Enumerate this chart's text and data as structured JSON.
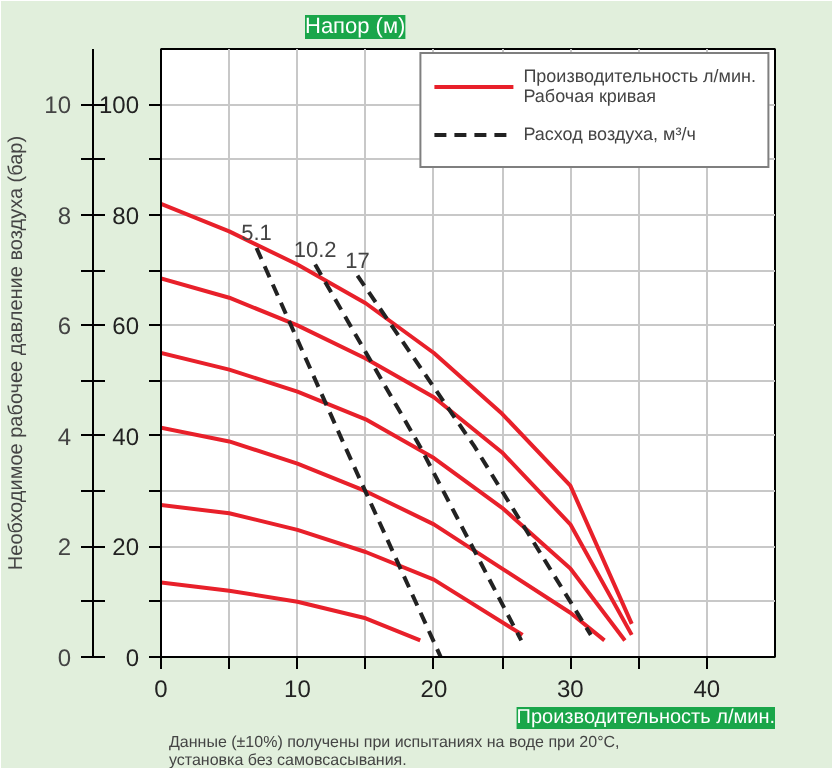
{
  "chart_data": {
    "type": "line",
    "xlabel": "Производительность л/мин.",
    "ylabel": "Напор (м)",
    "y2label": "Необходимое рабочее давление воздуха (бар)",
    "xlim": [
      0,
      45
    ],
    "ylim": [
      0,
      110
    ],
    "y2lim": [
      0,
      11
    ],
    "xticks": [
      0,
      {
        "value": 5,
        "label": null
      },
      10,
      {
        "value": 15,
        "label": null
      },
      20,
      {
        "value": 25,
        "label": null
      },
      30,
      {
        "value": 35,
        "label": null
      },
      40
    ],
    "yticks": [
      0,
      {
        "value": 10,
        "label": null
      },
      20,
      {
        "value": 30,
        "label": null
      },
      40,
      {
        "value": 50,
        "label": null
      },
      60,
      {
        "value": 70,
        "label": null
      },
      80,
      {
        "value": 90,
        "label": null
      },
      100
    ],
    "y2ticks": [
      0,
      {
        "value": 1,
        "label": null
      },
      2,
      {
        "value": 3,
        "label": null
      },
      4,
      {
        "value": 5,
        "label": null
      },
      6,
      {
        "value": 7,
        "label": null
      },
      8,
      {
        "value": 9,
        "label": null
      },
      10
    ],
    "grid": true,
    "legend": "top right",
    "marker": "none",
    "series": [
      {
        "name": "Производительность л/мин.\nРабочая кривая",
        "color": "#e8202a",
        "line_style": "solid",
        "x": [
          0,
          5,
          10,
          15,
          20,
          25,
          30,
          34.5
        ],
        "values": [
          82,
          77,
          71,
          64,
          55,
          44,
          31,
          6
        ]
      },
      {
        "color": "#e8202a",
        "line_style": "solid",
        "x": [
          0,
          5,
          10,
          15,
          20,
          25,
          30,
          34.5
        ],
        "values": [
          68.5,
          65,
          60,
          54,
          47,
          37,
          24,
          4
        ]
      },
      {
        "color": "#e8202a",
        "line_style": "solid",
        "x": [
          0,
          5,
          10,
          15,
          20,
          25,
          30,
          34
        ],
        "values": [
          55,
          52,
          48,
          43,
          36,
          27,
          16,
          3
        ]
      },
      {
        "color": "#e8202a",
        "line_style": "solid",
        "x": [
          0,
          5,
          10,
          15,
          20,
          25,
          30,
          32.5
        ],
        "values": [
          41.5,
          39,
          35,
          30,
          24,
          16,
          8,
          3
        ]
      },
      {
        "color": "#e8202a",
        "line_style": "solid",
        "x": [
          0,
          5,
          10,
          15,
          20,
          26.5
        ],
        "values": [
          27.5,
          26,
          23,
          19,
          14,
          4
        ]
      },
      {
        "color": "#e8202a",
        "line_style": "solid",
        "x": [
          0,
          5,
          10,
          15,
          19
        ],
        "values": [
          13.5,
          12,
          10,
          7,
          3
        ]
      },
      {
        "name": "Расход воздуха, м³/ч",
        "color": "#222222",
        "line_style": "dashed",
        "x": [
          7,
          13.5,
          20.5
        ],
        "values": [
          74,
          38,
          0
        ]
      },
      {
        "color": "#222222",
        "line_style": "dashed",
        "x": [
          11.3,
          19,
          26.4
        ],
        "values": [
          71,
          38,
          3
        ]
      },
      {
        "color": "#222222",
        "line_style": "dashed",
        "x": [
          14.4,
          23,
          31.5
        ],
        "values": [
          69,
          38,
          4
        ]
      }
    ],
    "annotations": [
      {
        "text": "5.1",
        "x": 7,
        "y": 74
      },
      {
        "text": "10.2",
        "x": 11.3,
        "y": 71
      },
      {
        "text": "17",
        "x": 14.4,
        "y": 69
      },
      "Данные (±10%) получены при испытаниях на воде при 20°C,\nустановка без самовсасывания."
    ]
  }
}
